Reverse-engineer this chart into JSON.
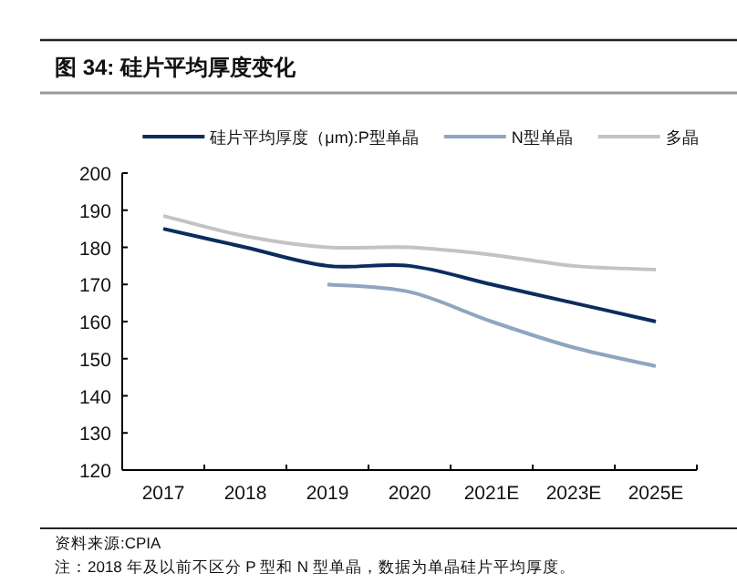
{
  "chart_data": {
    "type": "line",
    "title": "图 34:  硅片平均厚度变化",
    "categories": [
      "2017",
      "2018",
      "2019",
      "2020",
      "2021E",
      "2023E",
      "2025E"
    ],
    "series": [
      {
        "name": "硅片平均厚度（μm):P型单晶",
        "color": "#0c2c5e",
        "values": [
          185,
          180,
          175,
          175,
          170,
          165,
          160
        ]
      },
      {
        "name": "N型单晶",
        "color": "#8fa5c0",
        "values": [
          null,
          null,
          170,
          168,
          160,
          153,
          148
        ]
      },
      {
        "name": "多晶",
        "color": "#c3c3c3",
        "values": [
          188.5,
          183,
          180,
          180,
          178,
          175,
          174
        ]
      }
    ],
    "ylim": [
      120,
      200
    ],
    "yticks": [
      120,
      130,
      140,
      150,
      160,
      170,
      180,
      190,
      200
    ],
    "legend": "top",
    "annotations": [
      "资料来源:CPIA",
      "注：2018 年及以前不区分 P 型和 N 型单晶，数据为单晶硅片平均厚度。"
    ]
  }
}
